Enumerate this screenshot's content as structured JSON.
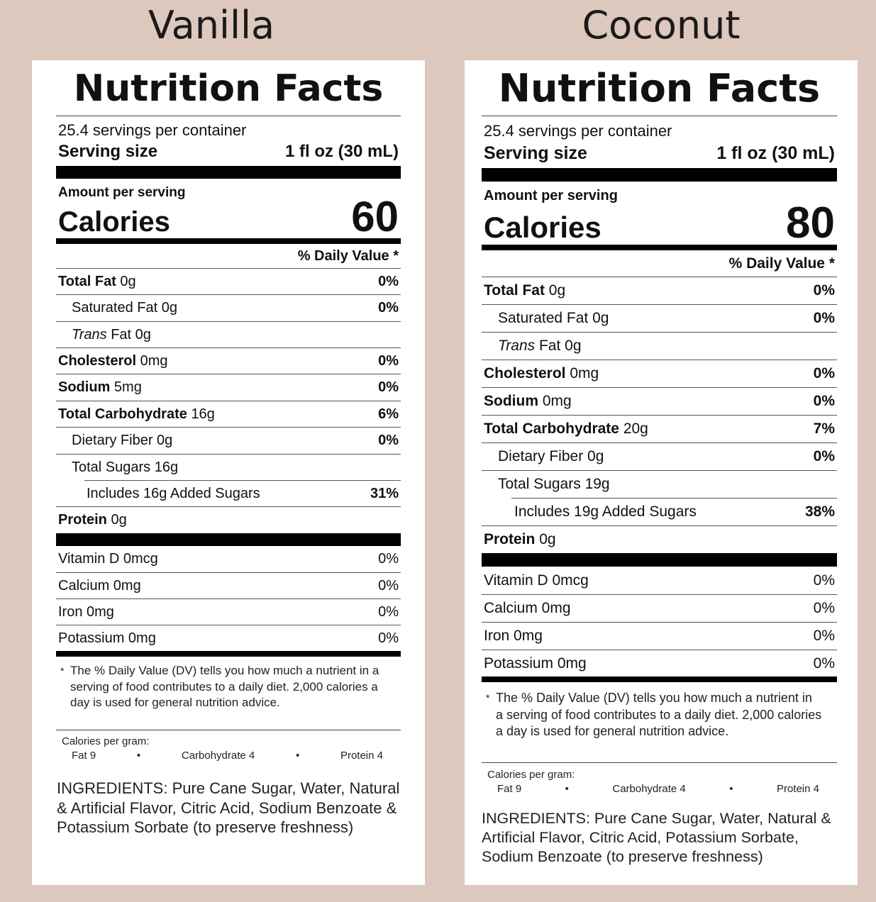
{
  "panels": [
    {
      "flavor": "Vanilla",
      "title": "Nutrition Facts",
      "servings": "25.4 servings per container",
      "serving_size_label": "Serving size",
      "serving_size_value": "1 fl oz (30 mL)",
      "amount_per_serving": "Amount per serving",
      "calories_label": "Calories",
      "calories_value": "60",
      "dv_header": "% Daily Value *",
      "nutrients": [
        {
          "name": "Total Fat",
          "amount": "0g",
          "dv": "0%"
        },
        {
          "name": "Saturated Fat",
          "amount": "0g",
          "dv": "0%"
        },
        {
          "name": "Trans",
          "amount": "Fat 0g",
          "dv": ""
        },
        {
          "name": "Cholesterol",
          "amount": "0mg",
          "dv": "0%"
        },
        {
          "name": "Sodium",
          "amount": "5mg",
          "dv": "0%"
        },
        {
          "name": "Total Carbohydrate",
          "amount": "16g",
          "dv": "6%"
        },
        {
          "name": "Dietary Fiber",
          "amount": "0g",
          "dv": "0%"
        },
        {
          "name": "Total Sugars",
          "amount": "16g",
          "dv": ""
        },
        {
          "name": "Includes 16g Added Sugars",
          "amount": "",
          "dv": "31%"
        },
        {
          "name": "Protein",
          "amount": "0g",
          "dv": ""
        }
      ],
      "vitamins": [
        {
          "name": "Vitamin D 0mcg",
          "dv": "0%"
        },
        {
          "name": "Calcium 0mg",
          "dv": "0%"
        },
        {
          "name": "Iron 0mg",
          "dv": "0%"
        },
        {
          "name": "Potassium 0mg",
          "dv": "0%"
        }
      ],
      "footnote_star": "*",
      "footnote": "The % Daily Value (DV) tells you how much a nutrient in a serving of food contributes to a daily diet. 2,000 calories a day is used for general nutrition advice.",
      "cpg_label": "Calories per gram:",
      "cpg_fat": "Fat 9",
      "cpg_carb": "Carbohydrate 4",
      "cpg_protein": "Protein 4",
      "cpg_dot": "•",
      "ingredients": "INGREDIENTS: Pure Cane Sugar, Water, Natural & Artificial Flavor, Citric Acid, Sodium Benzoate & Potassium Sorbate (to preserve freshness)"
    },
    {
      "flavor": "Coconut",
      "title": "Nutrition Facts",
      "servings": "25.4 servings per container",
      "serving_size_label": "Serving size",
      "serving_size_value": "1 fl oz (30 mL)",
      "amount_per_serving": "Amount per serving",
      "calories_label": "Calories",
      "calories_value": "80",
      "dv_header": "% Daily Value *",
      "nutrients": [
        {
          "name": "Total Fat",
          "amount": "0g",
          "dv": "0%"
        },
        {
          "name": "Saturated Fat",
          "amount": "0g",
          "dv": "0%"
        },
        {
          "name": "Trans",
          "amount": "Fat 0g",
          "dv": ""
        },
        {
          "name": "Cholesterol",
          "amount": "0mg",
          "dv": "0%"
        },
        {
          "name": "Sodium",
          "amount": "0mg",
          "dv": "0%"
        },
        {
          "name": "Total Carbohydrate",
          "amount": "20g",
          "dv": "7%"
        },
        {
          "name": "Dietary Fiber",
          "amount": "0g",
          "dv": "0%"
        },
        {
          "name": "Total Sugars",
          "amount": "19g",
          "dv": ""
        },
        {
          "name": "Includes 19g Added Sugars",
          "amount": "",
          "dv": "38%"
        },
        {
          "name": "Protein",
          "amount": "0g",
          "dv": ""
        }
      ],
      "vitamins": [
        {
          "name": "Vitamin D 0mcg",
          "dv": "0%"
        },
        {
          "name": "Calcium 0mg",
          "dv": "0%"
        },
        {
          "name": "Iron 0mg",
          "dv": "0%"
        },
        {
          "name": "Potassium 0mg",
          "dv": "0%"
        }
      ],
      "footnote_star": "*",
      "footnote": "The % Daily Value (DV) tells you how much a nutrient in a serving of food contributes to a daily diet. 2,000 calories a day is used for general nutrition advice.",
      "cpg_label": "Calories per gram:",
      "cpg_fat": "Fat 9",
      "cpg_carb": "Carbohydrate 4",
      "cpg_protein": "Protein 4",
      "cpg_dot": "•",
      "ingredients": "INGREDIENTS: Pure Cane Sugar, Water, Natural & Artificial Flavor, Citric Acid, Potassium Sorbate, Sodium Benzoate (to preserve freshness)"
    }
  ]
}
